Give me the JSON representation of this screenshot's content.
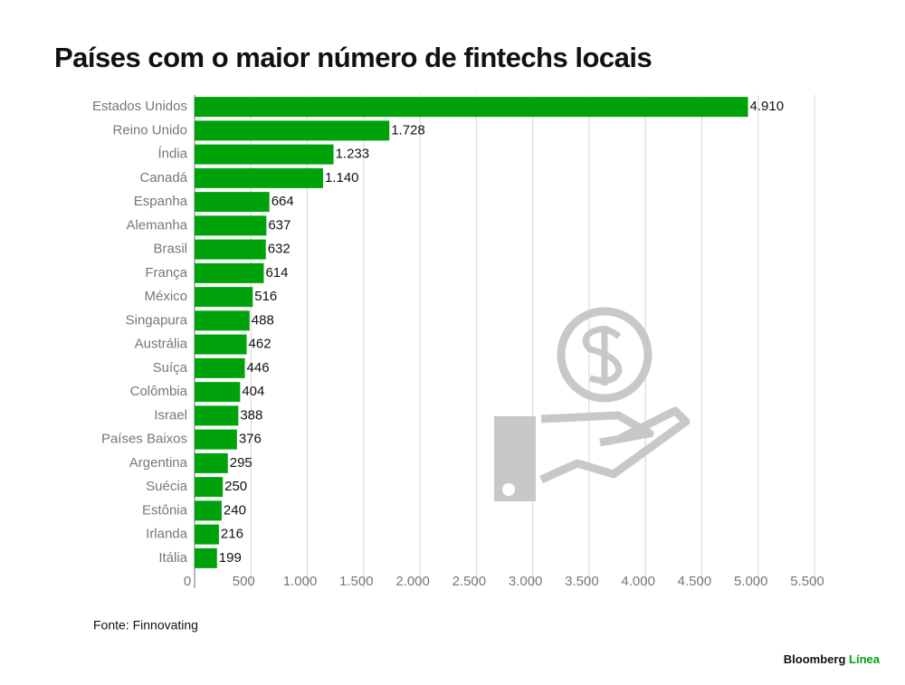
{
  "chart_data": {
    "type": "hbar",
    "title": "Países com o maior número de fintechs locais",
    "categories": [
      "Estados Unidos",
      "Reino Unido",
      "Índia",
      "Canadá",
      "Espanha",
      "Alemanha",
      "Brasil",
      "França",
      "México",
      "Singapura",
      "Austrália",
      "Suíça",
      "Colômbia",
      "Israel",
      "Países Baixos",
      "Argentina",
      "Suécia",
      "Estônia",
      "Irlanda",
      "Itália"
    ],
    "values": [
      4910,
      1728,
      1233,
      1140,
      664,
      637,
      632,
      614,
      516,
      488,
      462,
      446,
      404,
      388,
      376,
      295,
      250,
      240,
      216,
      199
    ],
    "value_labels": [
      "4.910",
      "1.728",
      "1.233",
      "1.140",
      "664",
      "637",
      "632",
      "614",
      "516",
      "488",
      "462",
      "446",
      "404",
      "388",
      "376",
      "295",
      "250",
      "240",
      "216",
      "199"
    ],
    "color": "#00a20c",
    "xlim": [
      0,
      5500
    ],
    "xticks": [
      0,
      500,
      {
        "value": 1000,
        "label": "1.000"
      },
      {
        "value": 1500,
        "label": "1.500"
      },
      {
        "value": 2000,
        "label": "2.000"
      },
      {
        "value": 2500,
        "label": "2.500"
      },
      {
        "value": 3000,
        "label": "3.000"
      },
      {
        "value": 3500,
        "label": "3.500"
      },
      {
        "value": 4000,
        "label": "4.000"
      },
      {
        "value": 4500,
        "label": "4.500"
      },
      {
        "value": 5000,
        "label": "5.000"
      },
      {
        "value": 5500,
        "label": "5.500"
      }
    ],
    "grid": true,
    "source": "Fonte: Finnovating",
    "brand": {
      "name": "Bloomberg",
      "sub": "Línea"
    }
  }
}
